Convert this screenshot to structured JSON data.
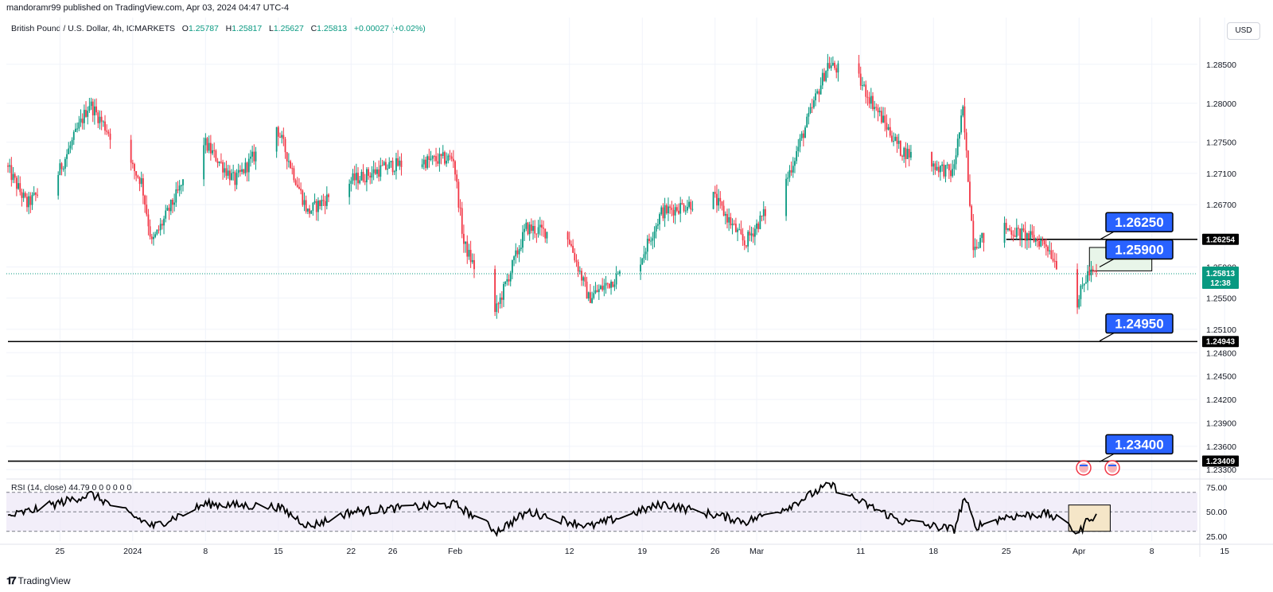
{
  "header": {
    "published_line": "mandoramr99 published on TradingView.com, Apr 03, 2024 04:47 UTC-4"
  },
  "legend": {
    "symbol": "British Pound / U.S. Dollar, 4h, ICMARKETS",
    "open_label": "O",
    "open": "1.25787",
    "high_label": "H",
    "high": "1.25817",
    "low_label": "L",
    "low": "1.25627",
    "close_label": "C",
    "close": "1.25813",
    "change": "+0.00027 (+0.02%)"
  },
  "currency_button": "USD",
  "footer": {
    "brand": "TradingView"
  },
  "colors": {
    "up": "#089981",
    "down": "#f23645",
    "callout": "#2962ff",
    "rsi_band": "#7e57c2",
    "zone_fill": "#e8f5e9",
    "rsi_box_fill": "#f5e6c8"
  },
  "chart_data": [
    {
      "type": "candlestick",
      "title": "British Pound / U.S. Dollar, 4h, ICMARKETS",
      "ylim": [
        1.232,
        1.291
      ],
      "y_ticks": [
        "1.28500",
        "1.28000",
        "1.27500",
        "1.27100",
        "1.26700",
        "1.25900",
        "1.25500",
        "1.25100",
        "1.24800",
        "1.24500",
        "1.24200",
        "1.23900",
        "1.23600",
        "1.23300"
      ],
      "x_ticks": [
        "25",
        "2024",
        "8",
        "15",
        "22",
        "26",
        "Feb",
        "12",
        "19",
        "26",
        "Mar",
        "11",
        "18",
        "25",
        "Apr",
        "8",
        "15"
      ],
      "anchors": [
        {
          "date": "2023-12-20",
          "price": 1.272
        },
        {
          "date": "2023-12-22",
          "price": 1.267
        },
        {
          "date": "2023-12-25",
          "price": 1.271
        },
        {
          "date": "2023-12-28",
          "price": 1.28
        },
        {
          "date": "2024-01-02",
          "price": 1.27
        },
        {
          "date": "2024-01-03",
          "price": 1.262
        },
        {
          "date": "2024-01-08",
          "price": 1.275
        },
        {
          "date": "2024-01-11",
          "price": 1.27
        },
        {
          "date": "2024-01-15",
          "price": 1.277
        },
        {
          "date": "2024-01-18",
          "price": 1.266
        },
        {
          "date": "2024-01-22",
          "price": 1.27
        },
        {
          "date": "2024-01-26",
          "price": 1.272
        },
        {
          "date": "2024-02-01",
          "price": 1.273
        },
        {
          "date": "2024-02-02",
          "price": 1.262
        },
        {
          "date": "2024-02-05",
          "price": 1.253
        },
        {
          "date": "2024-02-08",
          "price": 1.264
        },
        {
          "date": "2024-02-12",
          "price": 1.263
        },
        {
          "date": "2024-02-14",
          "price": 1.255
        },
        {
          "date": "2024-02-19",
          "price": 1.26
        },
        {
          "date": "2024-02-21",
          "price": 1.266
        },
        {
          "date": "2024-02-26",
          "price": 1.268
        },
        {
          "date": "2024-02-29",
          "price": 1.262
        },
        {
          "date": "2024-03-04",
          "price": 1.27
        },
        {
          "date": "2024-03-08",
          "price": 1.285
        },
        {
          "date": "2024-03-11",
          "price": 1.283
        },
        {
          "date": "2024-03-15",
          "price": 1.274
        },
        {
          "date": "2024-03-20",
          "price": 1.271
        },
        {
          "date": "2024-03-21",
          "price": 1.279
        },
        {
          "date": "2024-03-22",
          "price": 1.262
        },
        {
          "date": "2024-03-25",
          "price": 1.264
        },
        {
          "date": "2024-03-29",
          "price": 1.262
        },
        {
          "date": "2024-04-01",
          "price": 1.2545
        },
        {
          "date": "2024-04-02",
          "price": 1.2581
        }
      ],
      "last_price": "1.25813",
      "countdown": "12:38",
      "horizontal_lines": [
        {
          "price": 1.26254,
          "label": "1.26254",
          "start_date": "2024-03-25"
        },
        {
          "price": 1.24943,
          "label": "1.24943",
          "start_date": "2023-12-20"
        },
        {
          "price": 1.23409,
          "label": "1.23409",
          "start_date": "2023-12-20"
        }
      ],
      "zone": {
        "top": 1.2615,
        "bottom": 1.2585,
        "start_date": "2024-04-02",
        "end_date": "2024-04-08"
      },
      "callouts": [
        {
          "label": "1.26250",
          "price": 1.2625
        },
        {
          "label": "1.25900",
          "price": 1.259
        },
        {
          "label": "1.24950",
          "price": 1.2495
        },
        {
          "label": "1.23400",
          "price": 1.234
        }
      ]
    },
    {
      "type": "line",
      "title": "RSI (14, close)",
      "value": "44.79",
      "extra_values": [
        "0",
        "0",
        "0",
        "0",
        "0",
        "0"
      ],
      "ylim": [
        20,
        82
      ],
      "y_ticks": [
        "75.00",
        "50.00",
        "25.00"
      ],
      "band": [
        30,
        70
      ],
      "anchors": [
        {
          "date": "2023-12-20",
          "value": 45
        },
        {
          "date": "2023-12-28",
          "value": 68
        },
        {
          "date": "2024-01-03",
          "value": 35
        },
        {
          "date": "2024-01-08",
          "value": 58
        },
        {
          "date": "2024-01-15",
          "value": 55
        },
        {
          "date": "2024-01-18",
          "value": 35
        },
        {
          "date": "2024-01-22",
          "value": 50
        },
        {
          "date": "2024-02-01",
          "value": 58
        },
        {
          "date": "2024-02-05",
          "value": 30
        },
        {
          "date": "2024-02-08",
          "value": 50
        },
        {
          "date": "2024-02-14",
          "value": 35
        },
        {
          "date": "2024-02-21",
          "value": 58
        },
        {
          "date": "2024-02-29",
          "value": 40
        },
        {
          "date": "2024-03-04",
          "value": 55
        },
        {
          "date": "2024-03-08",
          "value": 78
        },
        {
          "date": "2024-03-11",
          "value": 60
        },
        {
          "date": "2024-03-15",
          "value": 40
        },
        {
          "date": "2024-03-20",
          "value": 32
        },
        {
          "date": "2024-03-21",
          "value": 65
        },
        {
          "date": "2024-03-22",
          "value": 35
        },
        {
          "date": "2024-03-25",
          "value": 45
        },
        {
          "date": "2024-03-29",
          "value": 48
        },
        {
          "date": "2024-04-01",
          "value": 28
        },
        {
          "date": "2024-04-02",
          "value": 44.79
        }
      ],
      "box": {
        "start_date": "2024-03-31",
        "end_date": "2024-04-04",
        "top": 57,
        "bottom": 30
      }
    }
  ]
}
